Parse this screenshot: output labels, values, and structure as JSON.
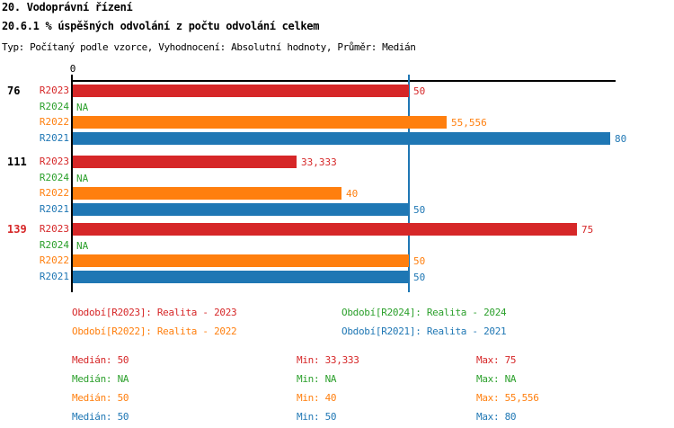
{
  "header": {
    "title_line1": "20. Vodoprávní řízení",
    "title_line2": "20.6.1 % úspěšných odvolání z počtu odvolání celkem",
    "subtitle": "Typ: Počítaný podle vzorce, Vyhodnocení: Absolutní hodnoty, Průměr: Medián"
  },
  "colors": {
    "R2023": "#d62728",
    "R2024": "#2ca02c",
    "R2022": "#ff7f0e",
    "R2021": "#1f77b4",
    "axis": "#000000",
    "median_line": "#1f77b4",
    "text": "#000000"
  },
  "chart_data": {
    "type": "bar",
    "orientation": "horizontal",
    "title": "20.6.1 % úspěšných odvolání z počtu odvolání celkem",
    "axis": {
      "zero_label": "0",
      "min": 0,
      "max": 80.75,
      "median_guideline": 50,
      "grid": false
    },
    "series_order": [
      "R2023",
      "R2024",
      "R2022",
      "R2021"
    ],
    "groups": [
      {
        "id": "76",
        "id_color": "#000000",
        "bars": [
          {
            "series": "R2023",
            "value": 50,
            "label": "50"
          },
          {
            "series": "R2024",
            "value": null,
            "label": "NA"
          },
          {
            "series": "R2022",
            "value": 55.556,
            "label": "55,556"
          },
          {
            "series": "R2021",
            "value": 80,
            "label": "80"
          }
        ]
      },
      {
        "id": "111",
        "id_color": "#000000",
        "bars": [
          {
            "series": "R2023",
            "value": 33.333,
            "label": "33,333"
          },
          {
            "series": "R2024",
            "value": null,
            "label": "NA"
          },
          {
            "series": "R2022",
            "value": 40,
            "label": "40"
          },
          {
            "series": "R2021",
            "value": 50,
            "label": "50"
          }
        ]
      },
      {
        "id": "139",
        "id_color": "#d62728",
        "bars": [
          {
            "series": "R2023",
            "value": 75,
            "label": "75"
          },
          {
            "series": "R2024",
            "value": null,
            "label": "NA"
          },
          {
            "series": "R2022",
            "value": 50,
            "label": "50"
          },
          {
            "series": "R2021",
            "value": 50,
            "label": "50"
          }
        ]
      }
    ]
  },
  "legend": {
    "items": [
      {
        "series": "R2023",
        "text": "Období[R2023]: Realita - 2023",
        "color": "#d62728",
        "col": 0,
        "row": 0
      },
      {
        "series": "R2024",
        "text": "Období[R2024]: Realita - 2024",
        "color": "#2ca02c",
        "col": 1,
        "row": 0
      },
      {
        "series": "R2022",
        "text": "Období[R2022]: Realita - 2022",
        "color": "#ff7f0e",
        "col": 0,
        "row": 1
      },
      {
        "series": "R2021",
        "text": "Období[R2021]: Realita - 2021",
        "color": "#1f77b4",
        "col": 1,
        "row": 1
      }
    ]
  },
  "stats": {
    "labels": {
      "median": "Medián",
      "min": "Min",
      "max": "Max"
    },
    "rows": [
      {
        "series": "R2023",
        "color": "#d62728",
        "median": "50",
        "min": "33,333",
        "max": "75"
      },
      {
        "series": "R2024",
        "color": "#2ca02c",
        "median": "NA",
        "min": "NA",
        "max": "NA"
      },
      {
        "series": "R2022",
        "color": "#ff7f0e",
        "median": "50",
        "min": "40",
        "max": "55,556"
      },
      {
        "series": "R2021",
        "color": "#1f77b4",
        "median": "50",
        "min": "50",
        "max": "80"
      }
    ]
  }
}
